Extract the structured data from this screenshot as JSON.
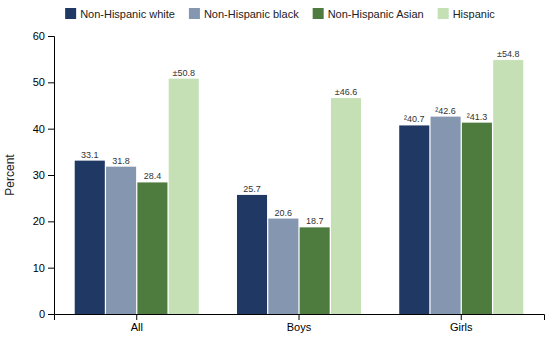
{
  "chart_data": {
    "type": "bar",
    "categories": [
      "All",
      "Boys",
      "Girls"
    ],
    "series": [
      {
        "name": "Non-Hispanic white",
        "color": "#1f3864",
        "values": [
          33.1,
          25.7,
          40.7
        ],
        "value_labels": [
          "33.1",
          "25.7",
          "²40.7"
        ]
      },
      {
        "name": "Non-Hispanic black",
        "color": "#8496b0",
        "values": [
          31.8,
          20.6,
          42.6
        ],
        "value_labels": [
          "31.8",
          "20.6",
          "²42.6"
        ]
      },
      {
        "name": "Non-Hispanic Asian",
        "color": "#4e7c3f",
        "values": [
          28.4,
          18.7,
          41.3
        ],
        "value_labels": [
          "28.4",
          "18.7",
          "²41.3"
        ]
      },
      {
        "name": "Hispanic",
        "color": "#c5e0b4",
        "values": [
          50.8,
          46.6,
          54.8
        ],
        "value_labels": [
          "±50.8",
          "±46.6",
          "±54.8"
        ]
      }
    ],
    "ylabel": "Percent",
    "ylim": [
      0,
      60
    ],
    "yticks": [
      0,
      10,
      20,
      30,
      40,
      50,
      60
    ],
    "grid": false,
    "legend": "top",
    "data_labels": true
  }
}
